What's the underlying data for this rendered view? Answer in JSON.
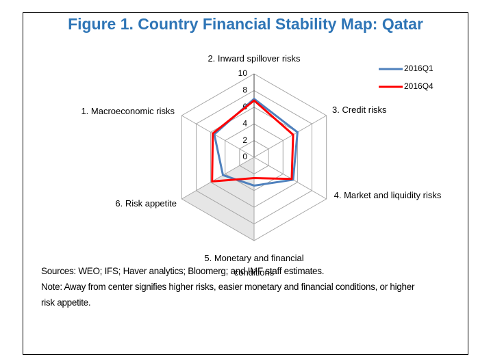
{
  "chart_data": {
    "type": "radar",
    "title": "Figure 1. Country Financial Stability Map: Qatar",
    "categories": [
      "2. Inward spillover risks",
      "3. Credit risks",
      "4. Market and liquidity risks",
      "5. Monetary and financial conditions",
      "6. Risk appetite",
      "1. Macroeconomic risks"
    ],
    "series": [
      {
        "name": "2016Q1",
        "color": "#4f81bd",
        "values": [
          7.0,
          6.0,
          5.4,
          3.4,
          4.3,
          5.5
        ]
      },
      {
        "name": "2016Q4",
        "color": "#ff0000",
        "values": [
          6.8,
          5.4,
          5.2,
          2.5,
          5.8,
          5.7
        ]
      }
    ],
    "rlim": [
      0,
      10
    ],
    "rticks": [
      0,
      2,
      4,
      6,
      8,
      10
    ],
    "grid": true,
    "legend": "top-right"
  },
  "sources": "Sources: WEO; IFS; Haver analytics; Bloomerg; and IMF staff estimates.",
  "note": "Note: Away from center signifies higher risks, easier monetary and financial conditions, or higher risk appetite."
}
